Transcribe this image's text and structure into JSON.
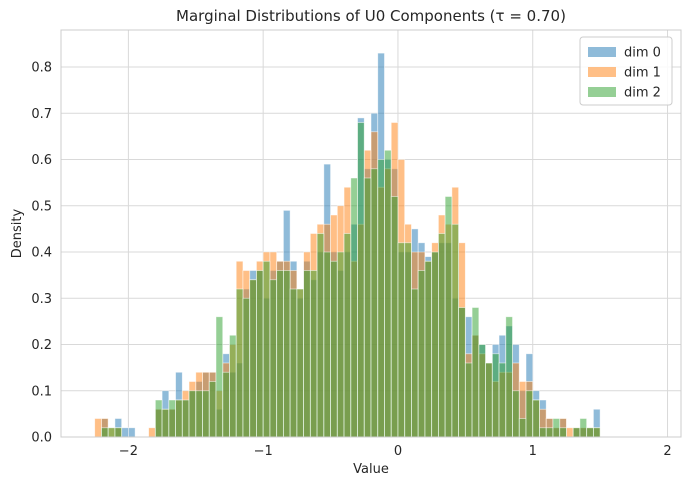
{
  "chart_data": {
    "type": "bar",
    "title": "Marginal Distributions of U0 Components (τ = 0.70)",
    "xlabel": "Value",
    "ylabel": "Density",
    "xlim": [
      -2.5,
      2.1
    ],
    "ylim": [
      0,
      0.88
    ],
    "xticks": [
      -2,
      -1,
      0,
      1,
      2
    ],
    "xtick_labels": [
      "−2",
      "−1",
      "0",
      "1",
      "2"
    ],
    "yticks": [
      0.0,
      0.1,
      0.2,
      0.3,
      0.4,
      0.5,
      0.6,
      0.7,
      0.8
    ],
    "ytick_labels": [
      "0.0",
      "0.1",
      "0.2",
      "0.3",
      "0.4",
      "0.5",
      "0.6",
      "0.7",
      "0.8"
    ],
    "grid": true,
    "legend_position": "top-right",
    "series": [
      {
        "name": "dim 0",
        "color": "#1f77b4",
        "bin_start": -2.25,
        "bin_width": 0.05,
        "densities": [
          0,
          0.04,
          0,
          0.04,
          0.02,
          0.02,
          0,
          0,
          0,
          0.06,
          0.1,
          0.06,
          0.14,
          0.08,
          0.1,
          0.12,
          0.14,
          0.14,
          0.06,
          0.18,
          0.14,
          0.16,
          0.32,
          0.36,
          0.36,
          0.3,
          0.36,
          0.38,
          0.49,
          0.38,
          0.3,
          0.38,
          0.34,
          0.4,
          0.59,
          0.4,
          0.36,
          0.4,
          0.46,
          0.69,
          0.58,
          0.7,
          0.83,
          0.6,
          0.58,
          0.4,
          0.4,
          0.45,
          0.42,
          0.39,
          0.4,
          0.42,
          0.42,
          0.3,
          0.28,
          0.26,
          0.22,
          0.2,
          0.16,
          0.2,
          0.22,
          0.24,
          0.2,
          0.1,
          0.18,
          0.1,
          0.08,
          0.04,
          0.02,
          0.04,
          0,
          0.02,
          0.02,
          0.02,
          0.06
        ]
      },
      {
        "name": "dim 1",
        "color": "#ff7f0e",
        "bin_start": -2.25,
        "bin_width": 0.05,
        "densities": [
          0.04,
          0.04,
          0.02,
          0.02,
          0,
          0,
          0,
          0,
          0.02,
          0.06,
          0.06,
          0.06,
          0.08,
          0.1,
          0.12,
          0.14,
          0.14,
          0.14,
          0.1,
          0.16,
          0.2,
          0.38,
          0.36,
          0.34,
          0.38,
          0.4,
          0.4,
          0.38,
          0.38,
          0.36,
          0.32,
          0.4,
          0.44,
          0.46,
          0.46,
          0.48,
          0.5,
          0.54,
          0.38,
          0.46,
          0.62,
          0.66,
          0.54,
          0.58,
          0.68,
          0.6,
          0.46,
          0.4,
          0.4,
          0.38,
          0.42,
          0.48,
          0.46,
          0.54,
          0.42,
          0.18,
          0.22,
          0.18,
          0.16,
          0.12,
          0.14,
          0.14,
          0.16,
          0.12,
          0.12,
          0.08,
          0.06,
          0.04,
          0.02,
          0.04,
          0.02,
          0.02,
          0.02,
          0.02,
          0.02
        ]
      },
      {
        "name": "dim 2",
        "color": "#2ca02c",
        "bin_start": -2.25,
        "bin_width": 0.05,
        "densities": [
          0,
          0.02,
          0.02,
          0.02,
          0,
          0,
          0,
          0,
          0,
          0.08,
          0.06,
          0.08,
          0.08,
          0.08,
          0.1,
          0.1,
          0.1,
          0.12,
          0.26,
          0.14,
          0.22,
          0.32,
          0.3,
          0.34,
          0.36,
          0.38,
          0.34,
          0.36,
          0.36,
          0.32,
          0.32,
          0.36,
          0.36,
          0.44,
          0.4,
          0.38,
          0.4,
          0.44,
          0.56,
          0.68,
          0.56,
          0.58,
          0.6,
          0.62,
          0.52,
          0.42,
          0.42,
          0.32,
          0.36,
          0.38,
          0.4,
          0.44,
          0.52,
          0.46,
          0.28,
          0.16,
          0.28,
          0.2,
          0.16,
          0.18,
          0.16,
          0.26,
          0.1,
          0.04,
          0.1,
          0.08,
          0.02,
          0.02,
          0.04,
          0.02,
          0,
          0.02,
          0.04,
          0.02,
          0.02
        ]
      }
    ]
  }
}
